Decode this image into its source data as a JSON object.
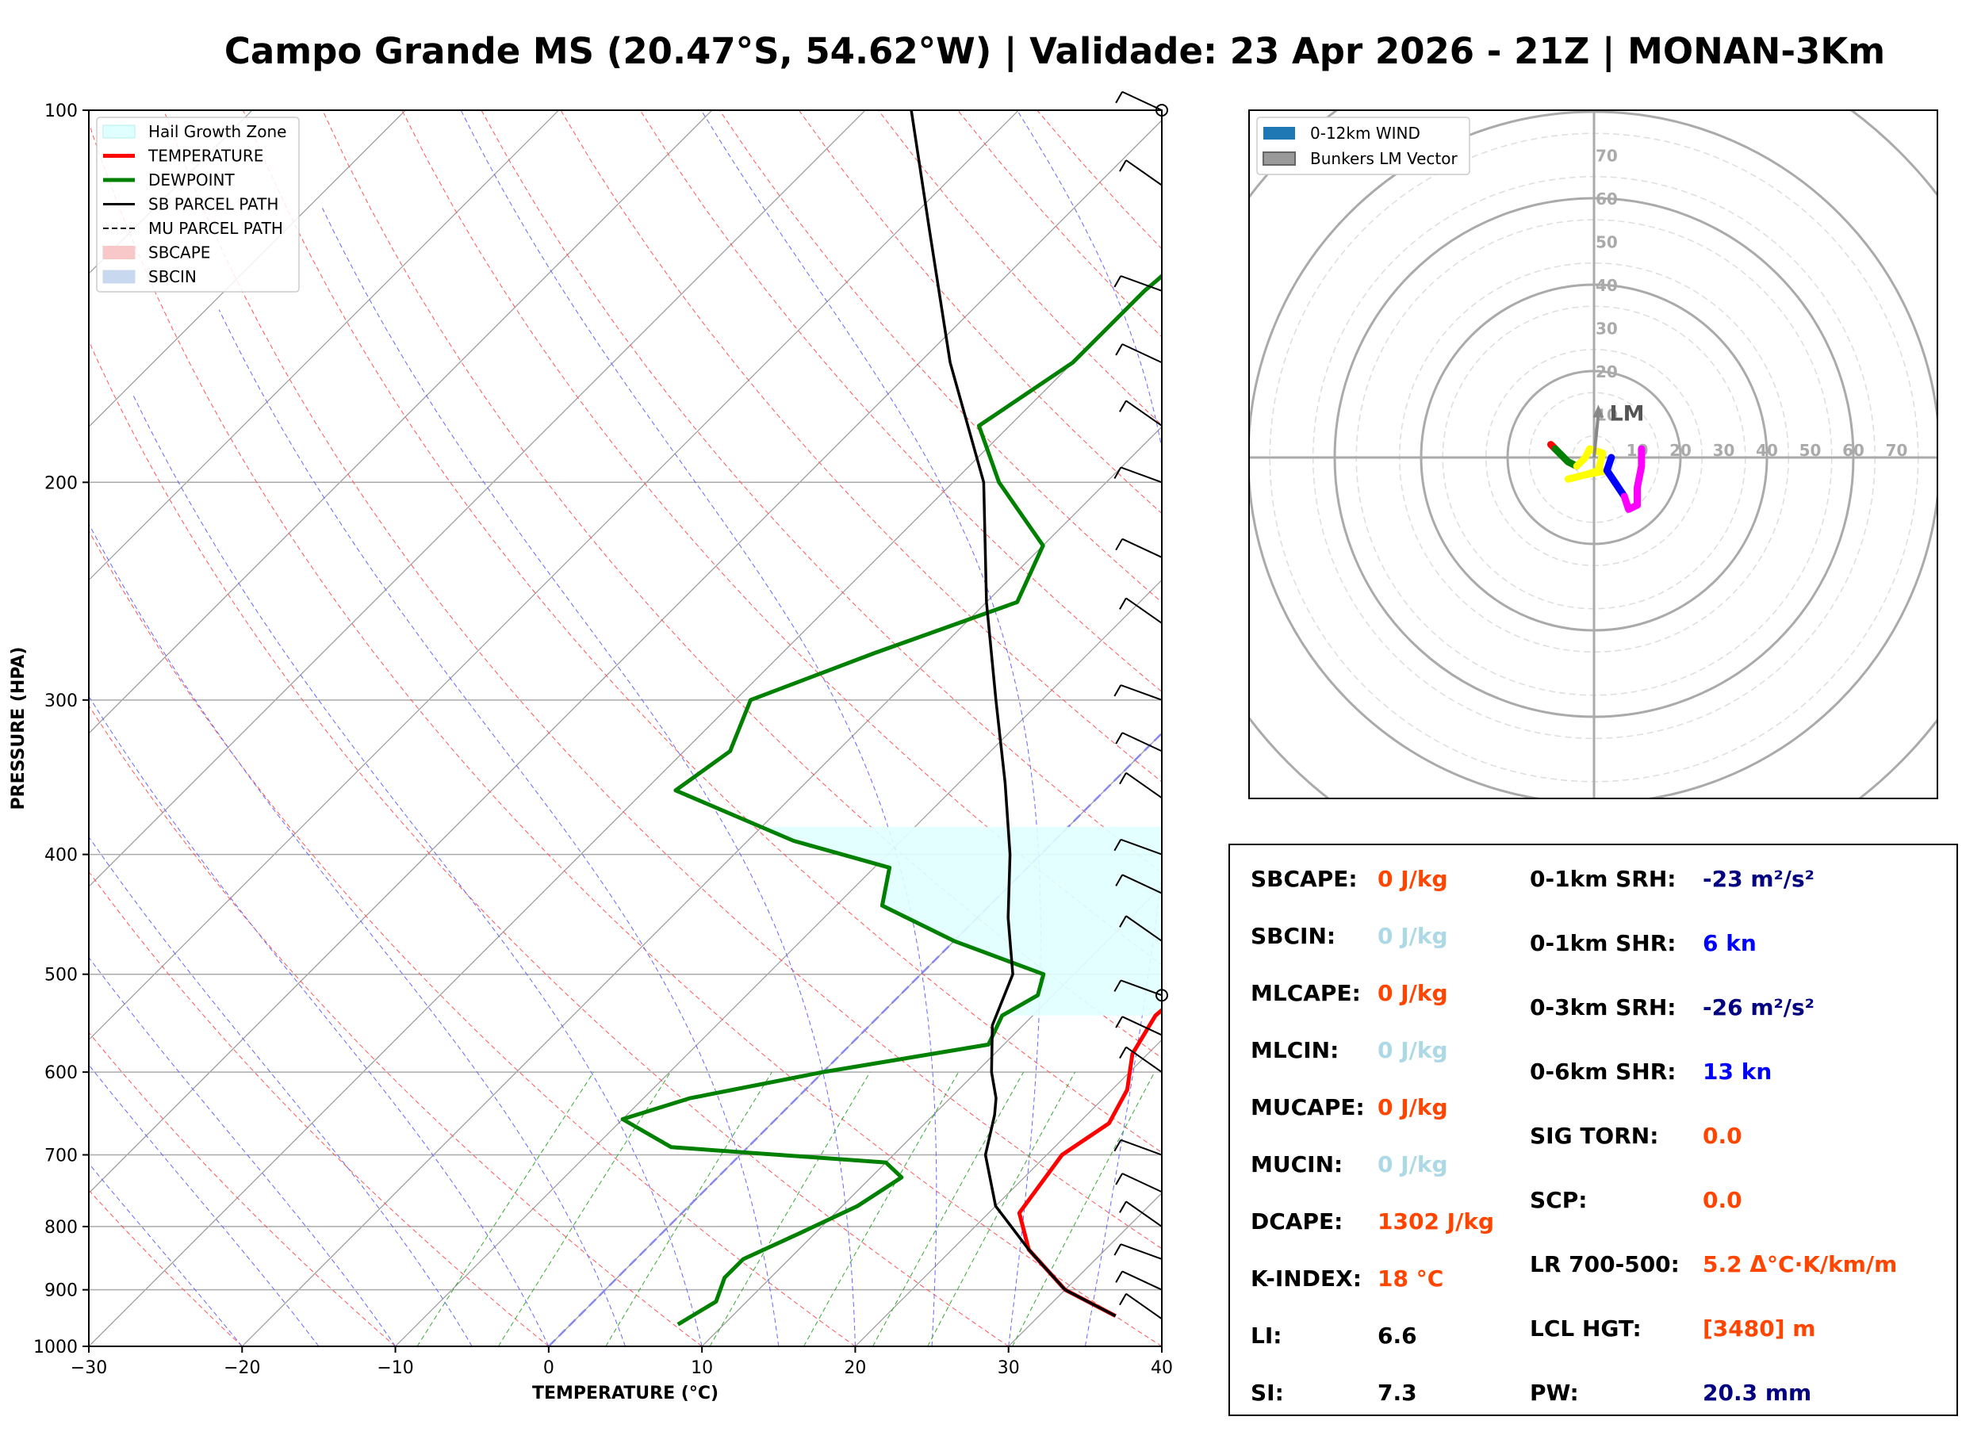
{
  "title": "Campo Grande MS (20.47°S, 54.62°W) | Validade: 23 Apr 2026 - 21Z | MONAN-3Km",
  "skewt": {
    "xlabel": "TEMPERATURE (°C)",
    "ylabel": "PRESSURE (HPA)",
    "xticks": [
      "−30",
      "−20",
      "−10",
      "0",
      "10",
      "20",
      "30",
      "40"
    ],
    "yticks": [
      "100",
      "200",
      "300",
      "400",
      "500",
      "600",
      "700",
      "800",
      "900",
      "1000"
    ],
    "legend": [
      "Hail Growth Zone",
      "TEMPERATURE",
      "DEWPOINT",
      "SB PARCEL PATH",
      "MU PARCEL PATH",
      "SBCAPE",
      "SBCIN"
    ]
  },
  "chart_data": [
    {
      "type": "line",
      "chart": "skew-t log-p",
      "xlabel": "TEMPERATURE (°C)",
      "ylabel": "PRESSURE (HPA)",
      "xlim": [
        -30,
        40
      ],
      "ylim": [
        1000,
        100
      ],
      "yscale": "log",
      "skew_deg_per_decade": 45,
      "hail_growth_zone_hpa": [
        380,
        540
      ],
      "series": [
        {
          "name": "TEMPERATURE",
          "color": "#ff0000",
          "points": [
            [
              35,
              945
            ],
            [
              30,
              900
            ],
            [
              25,
              835
            ],
            [
              22,
              780
            ],
            [
              21,
              700
            ],
            [
              22,
              660
            ],
            [
              21,
              620
            ],
            [
              19,
              580
            ],
            [
              18,
              540
            ],
            [
              18.5,
              500
            ],
            [
              19,
              460
            ],
            [
              18,
              420
            ],
            [
              16,
              380
            ],
            [
              14,
              350
            ],
            [
              11,
              320
            ],
            [
              7,
              290
            ],
            [
              4,
              270
            ],
            [
              1,
              245
            ],
            [
              -2,
              220
            ],
            [
              -4,
              200
            ],
            [
              -6,
              180
            ],
            [
              -8,
              160
            ],
            [
              -10,
              145
            ],
            [
              -11,
              130
            ],
            [
              -10,
              115
            ],
            [
              -6,
              100
            ]
          ]
        },
        {
          "name": "DEWPOINT",
          "color": "#008000",
          "points": [
            [
              7,
              960
            ],
            [
              8,
              920
            ],
            [
              7,
              880
            ],
            [
              7,
              850
            ],
            [
              9,
              810
            ],
            [
              11,
              770
            ],
            [
              12,
              730
            ],
            [
              10,
              710
            ],
            [
              -5,
              690
            ],
            [
              -10,
              655
            ],
            [
              -7,
              630
            ],
            [
              0,
              600
            ],
            [
              9,
              570
            ],
            [
              8,
              540
            ],
            [
              9,
              520
            ],
            [
              8,
              500
            ],
            [
              0,
              470
            ],
            [
              -7,
              440
            ],
            [
              -9,
              410
            ],
            [
              -17,
              390
            ],
            [
              -28,
              355
            ],
            [
              -27,
              330
            ],
            [
              -29,
              300
            ],
            [
              -24,
              275
            ],
            [
              -18,
              250
            ],
            [
              -20,
              225
            ],
            [
              -27,
              200
            ],
            [
              -32,
              180
            ],
            [
              -30,
              160
            ],
            [
              -30,
              140
            ],
            [
              -29,
              120
            ],
            [
              -28,
              100
            ]
          ]
        },
        {
          "name": "SB PARCEL PATH",
          "color": "#000000",
          "points": [
            [
              35,
              945
            ],
            [
              30,
              900
            ],
            [
              25,
              835
            ],
            [
              20,
              770
            ],
            [
              16,
              700
            ],
            [
              14,
              650
            ],
            [
              13,
              630
            ],
            [
              11,
              600
            ],
            [
              8,
              550
            ],
            [
              6,
              500
            ],
            [
              2,
              450
            ],
            [
              -2,
              400
            ],
            [
              -7,
              350
            ],
            [
              -13,
              300
            ],
            [
              -20,
              250
            ],
            [
              -28,
              200
            ],
            [
              -38,
              160
            ],
            [
              -48,
              125
            ],
            [
              -57,
              100
            ]
          ]
        }
      ],
      "wind_barbs": [
        [
          100,
          "≈10"
        ],
        [
          115,
          "≈15"
        ],
        [
          140,
          "≈20"
        ],
        [
          160,
          "≈25"
        ],
        [
          180,
          "≈20"
        ],
        [
          200,
          "≈20"
        ],
        [
          230,
          "≈25"
        ],
        [
          260,
          "≈25"
        ],
        [
          300,
          "≈20"
        ],
        [
          330,
          "≈10"
        ],
        [
          360,
          "≈5"
        ],
        [
          400,
          "≈10"
        ],
        [
          430,
          "≈10"
        ],
        [
          470,
          "≈5"
        ],
        [
          520,
          "≈5"
        ],
        [
          560,
          "calm"
        ],
        [
          600,
          "calm"
        ],
        [
          700,
          "≈5"
        ],
        [
          750,
          "≈5"
        ],
        [
          800,
          "≈5"
        ],
        [
          850,
          "≈10"
        ],
        [
          900,
          "≈10"
        ],
        [
          950,
          "≈10"
        ]
      ]
    },
    {
      "type": "hodograph",
      "xlim": [
        -80,
        80
      ],
      "ylim": [
        -80,
        80
      ],
      "unit": "kn",
      "rings": [
        10,
        20,
        30,
        40,
        50,
        60,
        70
      ],
      "ring_labels": [
        "10",
        "20",
        "30",
        "40",
        "50",
        "60",
        "70"
      ],
      "legend": [
        "0-12km WIND",
        "Bunkers LM Vector"
      ],
      "storm_motion_label": "LM",
      "lm_vector": [
        1,
        10
      ],
      "segments": [
        {
          "color": "#ff0000",
          "points": [
            [
              -10,
              3
            ],
            [
              -9,
              2
            ]
          ]
        },
        {
          "color": "#008000",
          "points": [
            [
              -9,
              2
            ],
            [
              -6,
              -1
            ],
            [
              -4,
              -2
            ]
          ]
        },
        {
          "color": "#ffff00",
          "points": [
            [
              -4,
              -2
            ],
            [
              -2,
              0
            ],
            [
              -1,
              2
            ],
            [
              2,
              1
            ],
            [
              1,
              -3
            ],
            [
              -2,
              -4
            ],
            [
              -6,
              -5
            ],
            [
              -2,
              -4
            ],
            [
              3,
              -3
            ]
          ]
        },
        {
          "color": "#0000ff",
          "points": [
            [
              3,
              -3
            ],
            [
              4,
              0
            ],
            [
              3,
              -3
            ],
            [
              5,
              -6
            ],
            [
              7,
              -9
            ]
          ]
        },
        {
          "color": "#ff00ff",
          "points": [
            [
              7,
              -9
            ],
            [
              8,
              -12
            ],
            [
              10,
              -11
            ],
            [
              10,
              -7
            ],
            [
              11,
              -2
            ],
            [
              11,
              2
            ]
          ]
        }
      ]
    }
  ],
  "hodo_legend": {
    "wind": "0-12km WIND",
    "lm": "Bunkers LM Vector"
  },
  "hodo_lm_label": "LM",
  "stats_left": [
    {
      "label": "SBCAPE:",
      "value": "0 J/kg",
      "color": "#ff4500"
    },
    {
      "label": "SBCIN:",
      "value": "0 J/kg",
      "color": "#add8e6"
    },
    {
      "label": "MLCAPE:",
      "value": "0 J/kg",
      "color": "#ff4500"
    },
    {
      "label": "MLCIN:",
      "value": "0 J/kg",
      "color": "#add8e6"
    },
    {
      "label": "MUCAPE:",
      "value": "0 J/kg",
      "color": "#ff4500"
    },
    {
      "label": "MUCIN:",
      "value": "0 J/kg",
      "color": "#add8e6"
    },
    {
      "label": "DCAPE:",
      "value": "1302 J/kg",
      "color": "#ff4500"
    },
    {
      "label": "K-INDEX:",
      "value": "18 °C",
      "color": "#ff4500"
    },
    {
      "label": "LI:",
      "value": "6.6",
      "color": "#000000"
    },
    {
      "label": "SI:",
      "value": "7.3",
      "color": "#000000"
    }
  ],
  "stats_right": [
    {
      "label": "0-1km SRH:",
      "value": "-23 m²/s²",
      "color": "#000080"
    },
    {
      "label": "0-1km SHR:",
      "value": "6 kn",
      "color": "#0000ff"
    },
    {
      "label": "0-3km SRH:",
      "value": "-26 m²/s²",
      "color": "#000080"
    },
    {
      "label": "0-6km SHR:",
      "value": "13 kn",
      "color": "#0000ff"
    },
    {
      "label": "SIG TORN:",
      "value": "0.0",
      "color": "#ff4500"
    },
    {
      "label": "SCP:",
      "value": "0.0",
      "color": "#ff4500"
    },
    {
      "label": "LR 700-500:",
      "value": "5.2 Δ°C·K/km/m",
      "color": "#ff4500"
    },
    {
      "label": "LCL HGT:",
      "value": "[3480] m",
      "color": "#ff4500"
    },
    {
      "label": "PW:",
      "value": "20.3 mm",
      "color": "#000080"
    }
  ]
}
